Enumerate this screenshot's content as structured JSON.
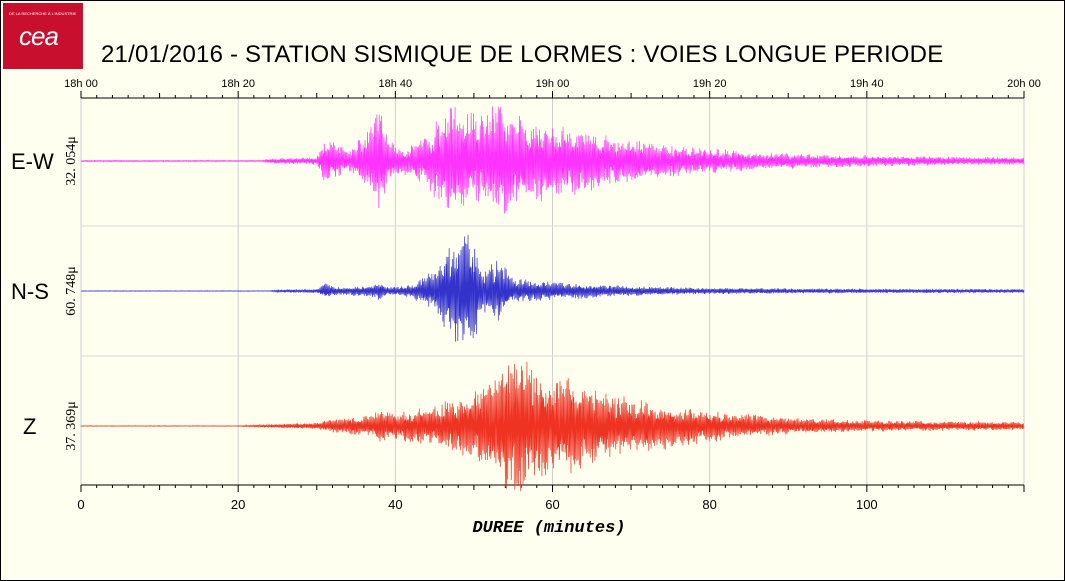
{
  "logo": {
    "text": "cea",
    "tagline": "DE LA RECHERCHE À L'INDUSTRIE"
  },
  "title": "21/01/2016  -  STATION SISMIQUE DE LORMES : VOIES LONGUE PERIODE",
  "chart_data": {
    "type": "line",
    "title": "21/01/2016  -  STATION SISMIQUE DE LORMES : VOIES LONGUE PERIODE",
    "xlabel": "DUREE  (minutes)",
    "xlim": [
      0,
      120
    ],
    "x_ticks": [
      0,
      20,
      40,
      60,
      80,
      100
    ],
    "top_axis_ticks": [
      "18h 00",
      "18h 20",
      "18h 40",
      "19h 00",
      "19h 20",
      "19h 40",
      "20h 00"
    ],
    "grid": true,
    "series": [
      {
        "name": "E-W",
        "scale": "32. 054μ",
        "color": "#ff33ff",
        "envelope": [
          [
            0,
            0.01
          ],
          [
            23,
            0.01
          ],
          [
            24,
            0.04
          ],
          [
            30,
            0.06
          ],
          [
            31,
            0.35
          ],
          [
            33,
            0.25
          ],
          [
            34,
            0.15
          ],
          [
            37,
            0.55
          ],
          [
            38,
            0.9
          ],
          [
            39,
            0.35
          ],
          [
            41,
            0.2
          ],
          [
            44,
            0.45
          ],
          [
            47,
            0.9
          ],
          [
            49,
            0.8
          ],
          [
            51,
            0.7
          ],
          [
            53,
            0.95
          ],
          [
            55,
            0.75
          ],
          [
            57,
            0.65
          ],
          [
            60,
            0.6
          ],
          [
            64,
            0.5
          ],
          [
            68,
            0.4
          ],
          [
            72,
            0.3
          ],
          [
            78,
            0.22
          ],
          [
            85,
            0.15
          ],
          [
            95,
            0.1
          ],
          [
            110,
            0.07
          ],
          [
            120,
            0.06
          ]
        ]
      },
      {
        "name": "N-S",
        "scale": "60. 748μ",
        "color": "#3333cc",
        "envelope": [
          [
            0,
            0.005
          ],
          [
            24,
            0.005
          ],
          [
            25,
            0.02
          ],
          [
            30,
            0.03
          ],
          [
            31,
            0.12
          ],
          [
            33,
            0.06
          ],
          [
            37,
            0.1
          ],
          [
            38,
            0.15
          ],
          [
            39,
            0.06
          ],
          [
            42,
            0.1
          ],
          [
            45,
            0.35
          ],
          [
            48,
            0.9
          ],
          [
            50,
            1.0
          ],
          [
            51,
            0.3
          ],
          [
            53,
            0.55
          ],
          [
            55,
            0.2
          ],
          [
            59,
            0.15
          ],
          [
            64,
            0.12
          ],
          [
            70,
            0.08
          ],
          [
            80,
            0.05
          ],
          [
            100,
            0.035
          ],
          [
            120,
            0.03
          ]
        ]
      },
      {
        "name": "Z",
        "scale": "37. 369μ",
        "color": "#ee3322",
        "envelope": [
          [
            0,
            0.005
          ],
          [
            20,
            0.005
          ],
          [
            23,
            0.02
          ],
          [
            30,
            0.05
          ],
          [
            32,
            0.1
          ],
          [
            37,
            0.15
          ],
          [
            38,
            0.25
          ],
          [
            40,
            0.2
          ],
          [
            45,
            0.3
          ],
          [
            50,
            0.5
          ],
          [
            52,
            0.7
          ],
          [
            54,
            0.9
          ],
          [
            56,
            1.0
          ],
          [
            58,
            0.8
          ],
          [
            60,
            0.7
          ],
          [
            62,
            0.75
          ],
          [
            65,
            0.55
          ],
          [
            70,
            0.4
          ],
          [
            76,
            0.3
          ],
          [
            82,
            0.2
          ],
          [
            90,
            0.12
          ],
          [
            100,
            0.08
          ],
          [
            120,
            0.06
          ]
        ]
      }
    ]
  }
}
